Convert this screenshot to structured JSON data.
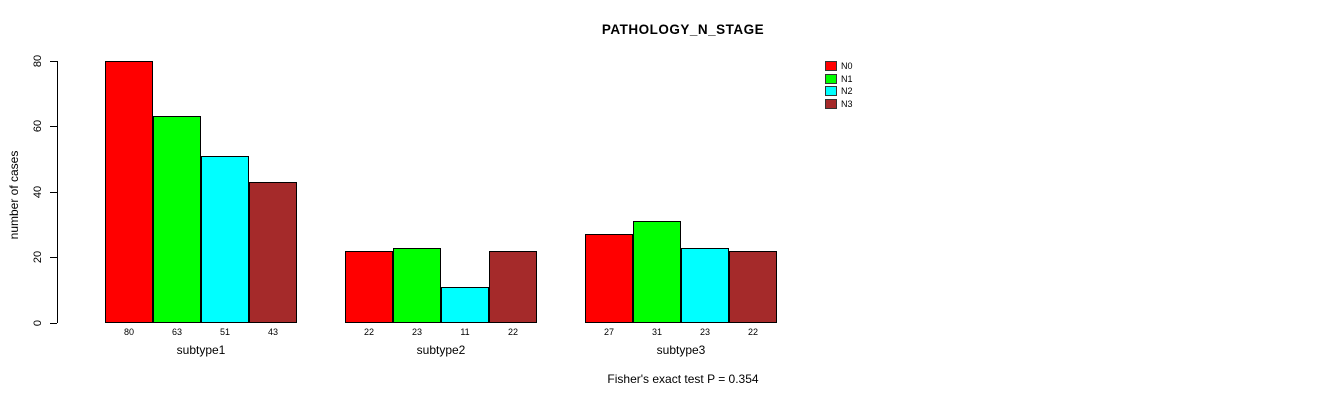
{
  "title": "PATHOLOGY_N_STAGE",
  "ylabel": "number of cases",
  "footer": "Fisher's exact test P = 0.354",
  "colors": {
    "background": "#FFFFFF",
    "axis": "#000000",
    "text": "#000000"
  },
  "legend": {
    "position": "top-right",
    "items": [
      {
        "label": "N0",
        "color": "#FF0000"
      },
      {
        "label": "N1",
        "color": "#00FF00"
      },
      {
        "label": "N2",
        "color": "#00FFFF"
      },
      {
        "label": "N3",
        "color": "#A52A2A"
      }
    ]
  },
  "chart_data": {
    "type": "bar",
    "grouped": true,
    "categories": [
      "subtype1",
      "subtype2",
      "subtype3"
    ],
    "series": [
      {
        "name": "N0",
        "color": "#FF0000",
        "values": [
          80,
          22,
          27
        ]
      },
      {
        "name": "N1",
        "color": "#00FF00",
        "values": [
          63,
          23,
          31
        ]
      },
      {
        "name": "N2",
        "color": "#00FFFF",
        "values": [
          51,
          11,
          23
        ]
      },
      {
        "name": "N3",
        "color": "#A52A2A",
        "values": [
          43,
          22,
          22
        ]
      }
    ],
    "bar_value_labels": [
      [
        80,
        63,
        51,
        43
      ],
      [
        22,
        23,
        11,
        22
      ],
      [
        27,
        31,
        23,
        22
      ]
    ],
    "title": "PATHOLOGY_N_STAGE",
    "xlabel": "",
    "ylabel": "number of cases",
    "ylim": [
      0,
      80
    ],
    "yticks": [
      0,
      20,
      40,
      60,
      80
    ],
    "grid": false,
    "legend_position": "top-right",
    "annotation": "Fisher's exact test P = 0.354"
  }
}
